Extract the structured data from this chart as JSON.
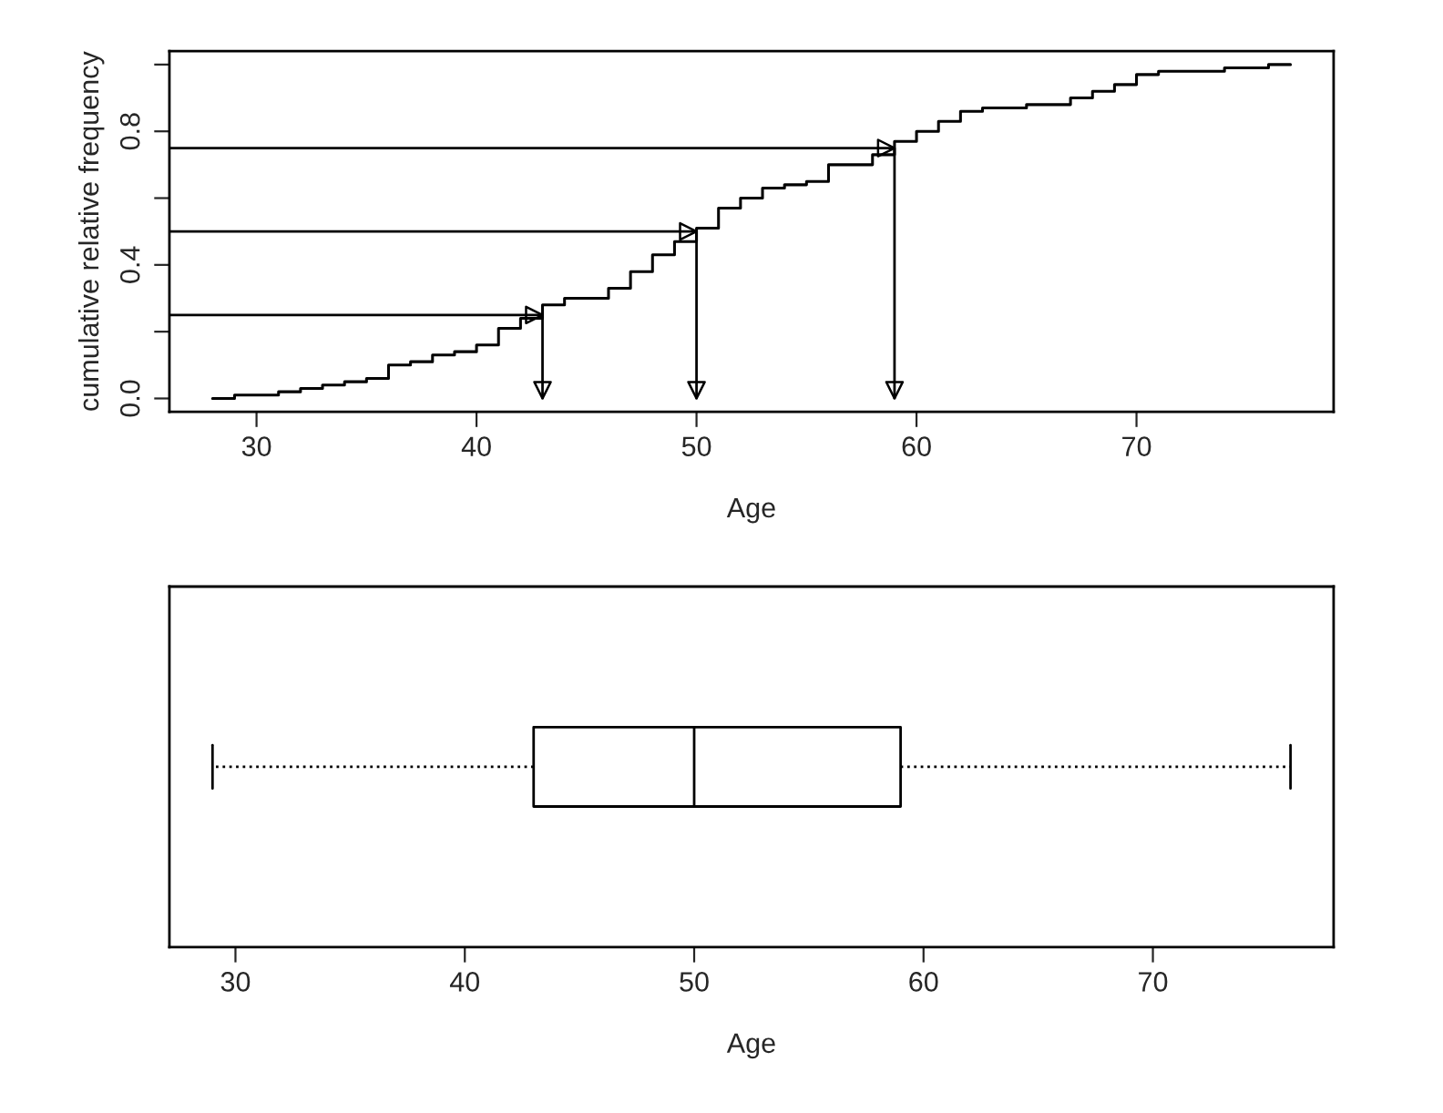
{
  "chart_data": [
    {
      "type": "step",
      "xlabel": "Age",
      "ylabel": "cumulative relative frequency",
      "xlim": [
        26.04,
        78.96
      ],
      "xticks": [
        30,
        40,
        50,
        60,
        70
      ],
      "ylim": [
        -0.04,
        1.04
      ],
      "yticks": [
        {
          "value": 0,
          "label": "0.0"
        },
        {
          "value": 0.2,
          "label": null
        },
        {
          "value": 0.4,
          "label": "0.4"
        },
        {
          "value": 0.6,
          "label": null
        },
        {
          "value": 0.8,
          "label": "0.8"
        },
        {
          "value": 1.0,
          "label": null
        }
      ],
      "series": [
        {
          "type": "step",
          "color": "#000000",
          "x": [
            28,
            29,
            31,
            32,
            33,
            34,
            35,
            36,
            37,
            38,
            39,
            40,
            41,
            42,
            43,
            44,
            46,
            47,
            48,
            49,
            50,
            51,
            52,
            53,
            54,
            55,
            56,
            58,
            59,
            60,
            61,
            62,
            63,
            65,
            67,
            68,
            69,
            70,
            71,
            74,
            76,
            77
          ],
          "values": [
            0.0,
            0.01,
            0.02,
            0.03,
            0.04,
            0.05,
            0.06,
            0.1,
            0.11,
            0.13,
            0.14,
            0.16,
            0.21,
            0.24,
            0.28,
            0.3,
            0.33,
            0.38,
            0.43,
            0.47,
            0.51,
            0.57,
            0.6,
            0.63,
            0.64,
            0.65,
            0.7,
            0.73,
            0.77,
            0.8,
            0.83,
            0.86,
            0.87,
            0.88,
            0.9,
            0.92,
            0.94,
            0.97,
            0.98,
            0.99,
            1.0,
            1.0
          ]
        },
        {
          "type": "line",
          "color": "#000000",
          "x": [
            26.04,
            43,
            43
          ],
          "values": [
            0.25,
            0.25,
            0
          ]
        },
        {
          "type": "line",
          "color": "#000000",
          "x": [
            26.04,
            50,
            50
          ],
          "values": [
            0.5,
            0.5,
            0
          ]
        },
        {
          "type": "line",
          "color": "#000000",
          "x": [
            26.04,
            59,
            59
          ],
          "values": [
            0.75,
            0.75,
            0
          ]
        }
      ]
    },
    {
      "type": "box",
      "orientation": "horizontal",
      "xlabel": "Age",
      "categories": [
        null
      ],
      "xlim": [
        27.12,
        77.88
      ],
      "xticks": [
        30,
        40,
        50,
        60,
        70
      ],
      "tick_labels": "x",
      "line_style": "dotted",
      "boxes": [
        {
          "low": 29,
          "q1": 43,
          "median": 50,
          "q3": 59,
          "high": 76
        }
      ]
    }
  ]
}
